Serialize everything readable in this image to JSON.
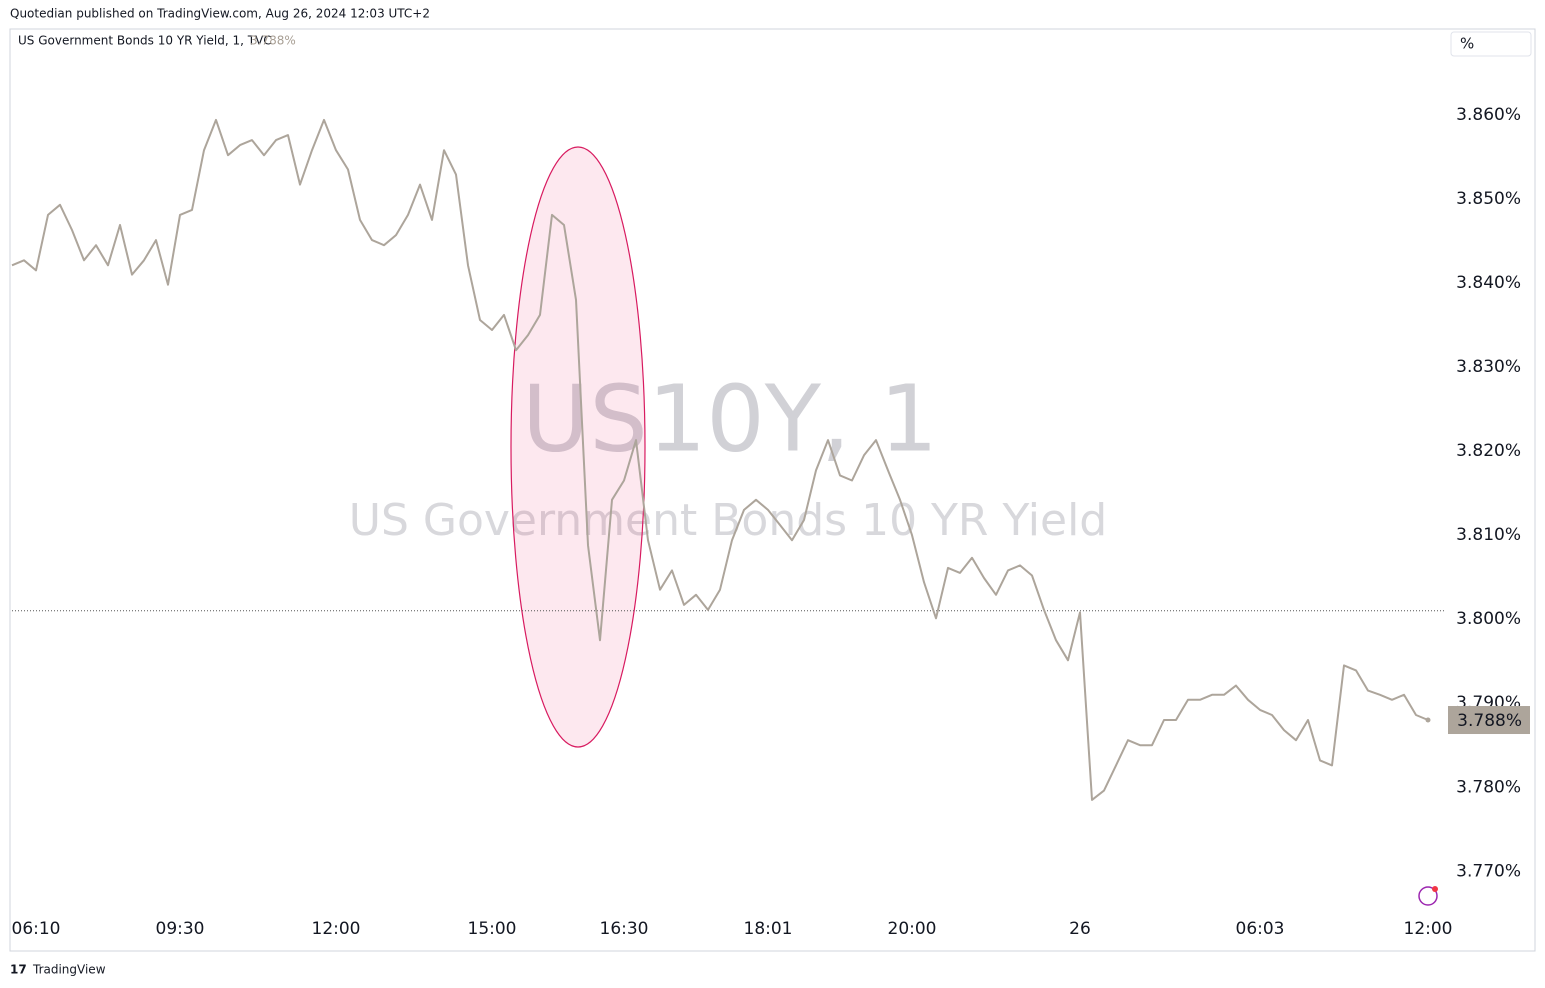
{
  "publisher": "Quotedian published on TradingView.com, Aug 26, 2024 12:03 UTC+2",
  "footer": "TradingView",
  "unit_button": "%",
  "chart_data": {
    "type": "line",
    "title": "US Government Bonds 10 YR Yield, 1, TVC",
    "last_label": "3.788%",
    "watermark": [
      "US10Y, 1",
      "US Government Bonds 10 YR Yield"
    ],
    "categories": [
      null,
      null,
      "06:10",
      null,
      null,
      null,
      null,
      null,
      null,
      null,
      null,
      null,
      null,
      null,
      "09:30",
      null,
      null,
      null,
      null,
      null,
      null,
      null,
      null,
      null,
      null,
      null,
      null,
      "12:00",
      null,
      null,
      null,
      null,
      null,
      null,
      null,
      null,
      null,
      null,
      null,
      null,
      "15:00",
      null,
      null,
      null,
      null,
      null,
      null,
      null,
      null,
      null,
      null,
      "16:30",
      null,
      null,
      null,
      null,
      null,
      null,
      null,
      null,
      null,
      null,
      null,
      "18:01",
      null,
      null,
      null,
      null,
      null,
      null,
      null,
      null,
      null,
      null,
      null,
      "20:00",
      null,
      null,
      null,
      null,
      null,
      null,
      null,
      null,
      null,
      null,
      null,
      null,
      null,
      "26",
      null,
      null,
      null,
      null,
      null,
      null,
      null,
      null,
      null,
      null,
      null,
      null,
      null,
      null,
      "06:03",
      null,
      null,
      null,
      null,
      null,
      null,
      null,
      null,
      null,
      null,
      null,
      null,
      null,
      "12:00"
    ],
    "series": [
      {
        "name": "US10Y",
        "color": "#ada59b",
        "values": [
          3.8421,
          3.8427,
          3.8415,
          3.8481,
          3.8493,
          3.8463,
          3.8427,
          3.8445,
          3.8421,
          3.8469,
          3.841,
          3.8427,
          3.8451,
          3.8398,
          3.8481,
          3.8487,
          3.8558,
          3.8594,
          3.8552,
          3.8564,
          3.857,
          3.8552,
          3.857,
          3.8576,
          3.8517,
          3.8558,
          3.8594,
          3.8558,
          3.8535,
          3.8475,
          3.8451,
          3.8445,
          3.8457,
          3.8481,
          3.8517,
          3.8475,
          3.8558,
          3.8529,
          3.8421,
          3.8356,
          3.8344,
          3.8362,
          3.832,
          3.8338,
          3.8362,
          3.8481,
          3.8469,
          3.838,
          3.8088,
          3.7975,
          3.8142,
          3.8165,
          3.8213,
          3.8094,
          3.8035,
          3.8058,
          3.8017,
          3.8029,
          3.8011,
          3.8035,
          3.8094,
          3.813,
          3.8142,
          3.813,
          3.8112,
          3.8094,
          3.8118,
          3.8177,
          3.8213,
          3.8171,
          3.8165,
          3.8195,
          3.8213,
          3.8177,
          3.8142,
          3.81,
          3.8044,
          3.8001,
          3.8061,
          3.8055,
          3.8073,
          3.8049,
          3.8029,
          3.8058,
          3.8064,
          3.8052,
          3.8011,
          3.7975,
          3.7951,
          3.8008,
          3.7785,
          3.7796,
          3.7826,
          3.7856,
          3.785,
          3.785,
          3.788,
          3.788,
          3.7904,
          3.7904,
          3.791,
          3.791,
          3.7921,
          3.7904,
          3.7892,
          3.7886,
          3.7868,
          3.7856,
          3.788,
          3.7832,
          3.7826,
          3.7945,
          3.7939,
          3.7915,
          3.791,
          3.7904,
          3.791,
          3.7886,
          3.788
        ]
      }
    ],
    "reference_line": 3.801,
    "ylim": [
      3.7648,
      3.8701
    ],
    "yticks": [
      {
        "value": 3.77,
        "label": "3.770%"
      },
      {
        "value": 3.78,
        "label": "3.780%"
      },
      {
        "value": 3.79,
        "label": "3.790%"
      },
      {
        "value": 3.8,
        "label": "3.800%"
      },
      {
        "value": 3.81,
        "label": "3.810%"
      },
      {
        "value": 3.82,
        "label": "3.820%"
      },
      {
        "value": 3.83,
        "label": "3.830%"
      },
      {
        "value": 3.84,
        "label": "3.840%"
      },
      {
        "value": 3.85,
        "label": "3.850%"
      },
      {
        "value": 3.86,
        "label": "3.860%"
      }
    ],
    "grid": false
  }
}
